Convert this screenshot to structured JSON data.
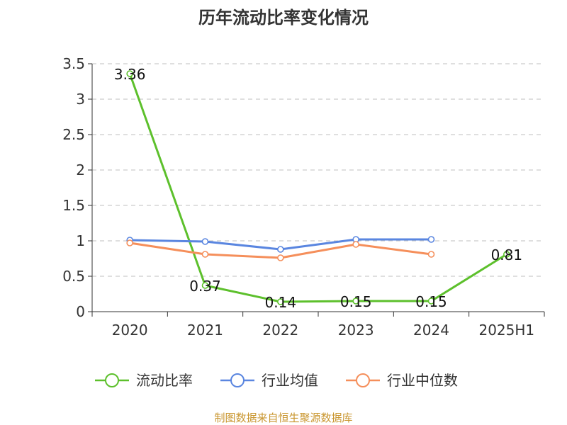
{
  "chart_data": {
    "type": "line",
    "title": "历年流动比率变化情况",
    "categories": [
      "2020",
      "2021",
      "2022",
      "2023",
      "2024",
      "2025H1"
    ],
    "ylim": [
      0,
      3.5
    ],
    "yticks": [
      "0",
      "0.5",
      "1",
      "1.5",
      "2",
      "2.5",
      "3",
      "3.5"
    ],
    "grid": true,
    "legend_position": "bottom",
    "series": [
      {
        "name": "流动比率",
        "color": "#5dc02c",
        "values": [
          3.36,
          0.37,
          0.14,
          0.15,
          0.15,
          0.81
        ],
        "labels": [
          "3.36",
          "0.37",
          "0.14",
          "0.15",
          "0.15",
          "0.81"
        ]
      },
      {
        "name": "行业均值",
        "color": "#5a86e0",
        "values": [
          1.01,
          0.99,
          0.88,
          1.02,
          1.02,
          null
        ]
      },
      {
        "name": "行业中位数",
        "color": "#f58f5b",
        "values": [
          0.97,
          0.81,
          0.76,
          0.95,
          0.81,
          null
        ]
      }
    ],
    "source": "制图数据来自恒生聚源数据库"
  }
}
